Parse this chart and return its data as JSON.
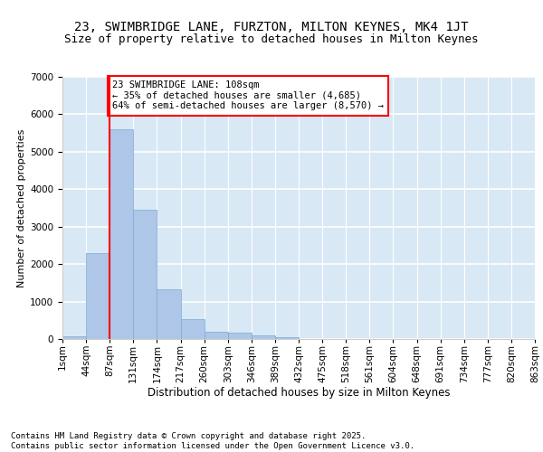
{
  "title1": "23, SWIMBRIDGE LANE, FURZTON, MILTON KEYNES, MK4 1JT",
  "title2": "Size of property relative to detached houses in Milton Keynes",
  "xlabel": "Distribution of detached houses by size in Milton Keynes",
  "ylabel": "Number of detached properties",
  "bar_values": [
    75,
    2300,
    5600,
    3450,
    1320,
    530,
    200,
    175,
    90,
    50,
    0,
    0,
    0,
    0,
    0,
    0,
    0,
    0,
    0,
    0
  ],
  "categories": [
    "1sqm",
    "44sqm",
    "87sqm",
    "131sqm",
    "174sqm",
    "217sqm",
    "260sqm",
    "303sqm",
    "346sqm",
    "389sqm",
    "432sqm",
    "475sqm",
    "518sqm",
    "561sqm",
    "604sqm",
    "648sqm",
    "691sqm",
    "734sqm",
    "777sqm",
    "820sqm",
    "863sqm"
  ],
  "bar_color": "#aec6e8",
  "bar_edge_color": "#7aaad0",
  "vline_x": 2,
  "vline_color": "red",
  "annotation_text": "23 SWIMBRIDGE LANE: 108sqm\n← 35% of detached houses are smaller (4,685)\n64% of semi-detached houses are larger (8,570) →",
  "annotation_box_color": "white",
  "annotation_box_edge_color": "red",
  "annotation_fontsize": 7.5,
  "ylim": [
    0,
    7000
  ],
  "yticks": [
    0,
    1000,
    2000,
    3000,
    4000,
    5000,
    6000,
    7000
  ],
  "background_color": "#d8e8f5",
  "grid_color": "white",
  "title1_fontsize": 10,
  "title2_fontsize": 9,
  "xlabel_fontsize": 8.5,
  "ylabel_fontsize": 8,
  "tick_fontsize": 7.5,
  "footer_text": "Contains HM Land Registry data © Crown copyright and database right 2025.\nContains public sector information licensed under the Open Government Licence v3.0.",
  "footer_fontsize": 6.5
}
